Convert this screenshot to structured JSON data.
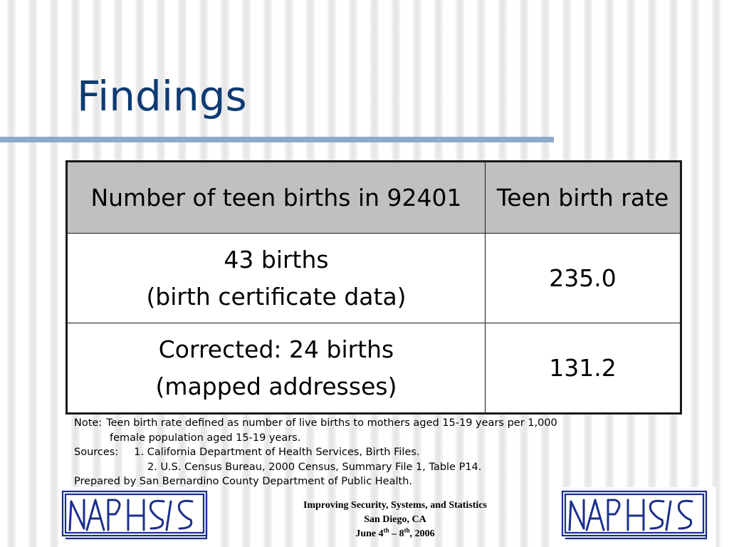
{
  "slide": {
    "title": "Findings"
  },
  "table": {
    "headers": [
      "Number of teen births in 92401",
      "Teen birth rate"
    ],
    "rows": [
      {
        "count_line1": "43 births",
        "count_line2": "(birth certificate data)",
        "rate": "235.0"
      },
      {
        "count_line1": "Corrected: 24 births",
        "count_line2": "(mapped addresses)",
        "rate": "131.2"
      }
    ]
  },
  "note": {
    "label": "Note:",
    "line1": "Teen birth rate defined as number of live births to mothers aged 15-19 years per 1,000",
    "line2": "female population aged  15-19 years.",
    "sources_label": "Sources:",
    "source1": "1. California Department of Health Services, Birth Files.",
    "source2": "2. U.S. Census Bureau, 2000 Census, Summary File 1, Table P14.",
    "prepared": "Prepared by San Bernardino County Department of Public Health."
  },
  "footer": {
    "line1": "Improving Security, Systems, and Statistics",
    "line2": "San Diego, CA",
    "date_prefix": "June 4",
    "sup1": "th",
    "date_mid": " – 8",
    "sup2": "th",
    "date_suffix": ", 2006"
  },
  "logo": {
    "text": "NAPHSIS",
    "color": "#1b2f8c"
  }
}
